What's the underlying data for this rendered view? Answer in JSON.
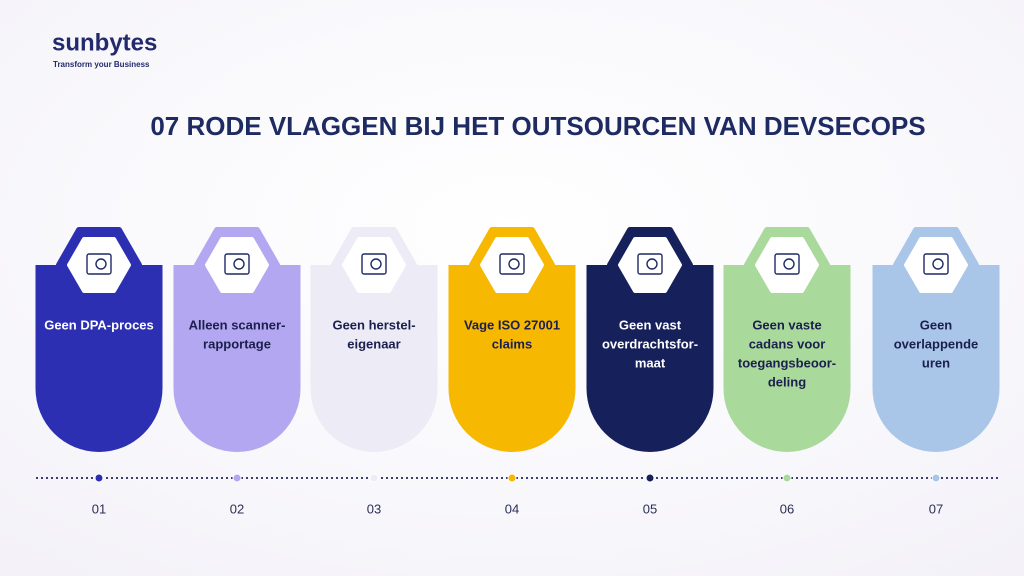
{
  "header": {
    "logo": "sunbytes",
    "tagline": "Transform your Business",
    "title": "07 RODE VLAGGEN BIJ HET OUTSOURCEN VAN DEVSECOPS"
  },
  "items": [
    {
      "lines": [
        "Geen DPA-proces"
      ],
      "number": "01",
      "color": "#2c2fb2",
      "text_color": "#ffffff"
    },
    {
      "lines": [
        "Alleen scanner-",
        "rapportage"
      ],
      "number": "02",
      "color": "#b4a7f1",
      "text_color": "#1b1f4d"
    },
    {
      "lines": [
        "Geen herstel-",
        "eigenaar"
      ],
      "number": "03",
      "color": "#ecebf6",
      "text_color": "#1b1f4d"
    },
    {
      "lines": [
        "Vage ISO 27001",
        "claims"
      ],
      "number": "04",
      "color": "#f6b800",
      "text_color": "#1b1f4d"
    },
    {
      "lines": [
        "Geen vast",
        "overdrachtsfor-",
        "maat"
      ],
      "number": "05",
      "color": "#16205a",
      "text_color": "#ffffff"
    },
    {
      "lines": [
        "Geen vaste",
        "cadans voor",
        "toegangsbeoor-",
        "deling"
      ],
      "number": "06",
      "color": "#a9d99b",
      "text_color": "#1b1f4d"
    },
    {
      "lines": [
        "Geen",
        "overlappende",
        "uren"
      ],
      "number": "07",
      "color": "#a9c6e9",
      "text_color": "#1b1f4d"
    }
  ]
}
